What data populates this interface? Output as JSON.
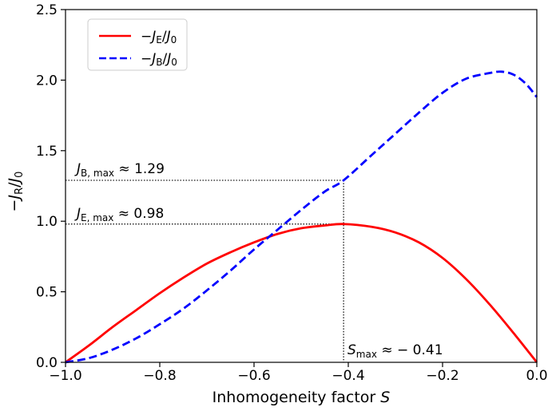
{
  "chart_data": {
    "type": "line",
    "xlabel": "Inhomogeneity factor S",
    "ylabel": "−J_R/J_0",
    "xlim": [
      -1.0,
      0.0
    ],
    "ylim": [
      0.0,
      2.5
    ],
    "x_ticks": [
      "−1.0",
      "−0.8",
      "−0.6",
      "−0.4",
      "−0.2",
      "0.0"
    ],
    "x_tick_values": [
      -1.0,
      -0.8,
      -0.6,
      -0.4,
      -0.2,
      0.0
    ],
    "y_ticks": [
      "0.0",
      "0.5",
      "1.0",
      "1.5",
      "2.0",
      "2.5"
    ],
    "y_tick_values": [
      0.0,
      0.5,
      1.0,
      1.5,
      2.0,
      2.5
    ],
    "grid": false,
    "legend_placement": "upper-left",
    "series": [
      {
        "name": "−J_E/J_0",
        "color": "#ff0000",
        "style": "solid",
        "x": [
          -1.0,
          -0.95,
          -0.9,
          -0.85,
          -0.8,
          -0.75,
          -0.7,
          -0.65,
          -0.6,
          -0.55,
          -0.5,
          -0.45,
          -0.41,
          -0.35,
          -0.3,
          -0.25,
          -0.2,
          -0.15,
          -0.1,
          -0.05,
          0.0
        ],
        "y": [
          0.0,
          0.12,
          0.25,
          0.37,
          0.49,
          0.6,
          0.7,
          0.78,
          0.85,
          0.91,
          0.95,
          0.97,
          0.98,
          0.96,
          0.92,
          0.85,
          0.74,
          0.59,
          0.41,
          0.21,
          0.0
        ]
      },
      {
        "name": "−J_B/J_0",
        "color": "#0000ff",
        "style": "dashed",
        "x": [
          -1.0,
          -0.95,
          -0.9,
          -0.85,
          -0.8,
          -0.75,
          -0.7,
          -0.65,
          -0.6,
          -0.55,
          -0.5,
          -0.45,
          -0.41,
          -0.35,
          -0.3,
          -0.25,
          -0.2,
          -0.15,
          -0.1,
          -0.075,
          -0.05,
          -0.025,
          0.0
        ],
        "y": [
          0.0,
          0.03,
          0.09,
          0.17,
          0.27,
          0.38,
          0.51,
          0.65,
          0.8,
          0.94,
          1.08,
          1.21,
          1.29,
          1.47,
          1.62,
          1.77,
          1.91,
          2.01,
          2.05,
          2.06,
          2.04,
          1.98,
          1.88
        ]
      }
    ],
    "annotations": [
      {
        "name": "jb-max",
        "label": "J_B,max ≈ 1.29",
        "x": -0.41,
        "y": 1.29
      },
      {
        "name": "je-max",
        "label": "J_E,max ≈ 0.98",
        "x": -0.41,
        "y": 0.98
      },
      {
        "name": "s-max",
        "label": "S_max ≈ −0.41",
        "x": -0.41,
        "y": 0.0
      }
    ]
  },
  "text": {
    "xlabel_main": "Inhomogeneity factor ",
    "xlabel_var": "S",
    "ylabel_minus": "−",
    "ylabel_J1": "J",
    "ylabel_sub1": "R",
    "ylabel_slash": "/",
    "ylabel_J2": "J",
    "ylabel_sub2": "0",
    "legend_E_minus": "−",
    "legend_E_J": "J",
    "legend_E_sub": "E",
    "legend_E_slash": "/",
    "legend_E_J0": "J",
    "legend_E_sub0": "0",
    "legend_B_minus": "−",
    "legend_B_J": "J",
    "legend_B_sub": "B",
    "legend_B_slash": "/",
    "legend_B_J0": "J",
    "legend_B_sub0": "0",
    "ann_jb_J": "J",
    "ann_jb_sub": "B, max",
    "ann_jb_val": " ≈ 1.29",
    "ann_je_J": "J",
    "ann_je_sub": "E, max",
    "ann_je_val": " ≈ 0.98",
    "ann_s_S": "S",
    "ann_s_sub": "max",
    "ann_s_val": " ≈ − 0.41"
  }
}
